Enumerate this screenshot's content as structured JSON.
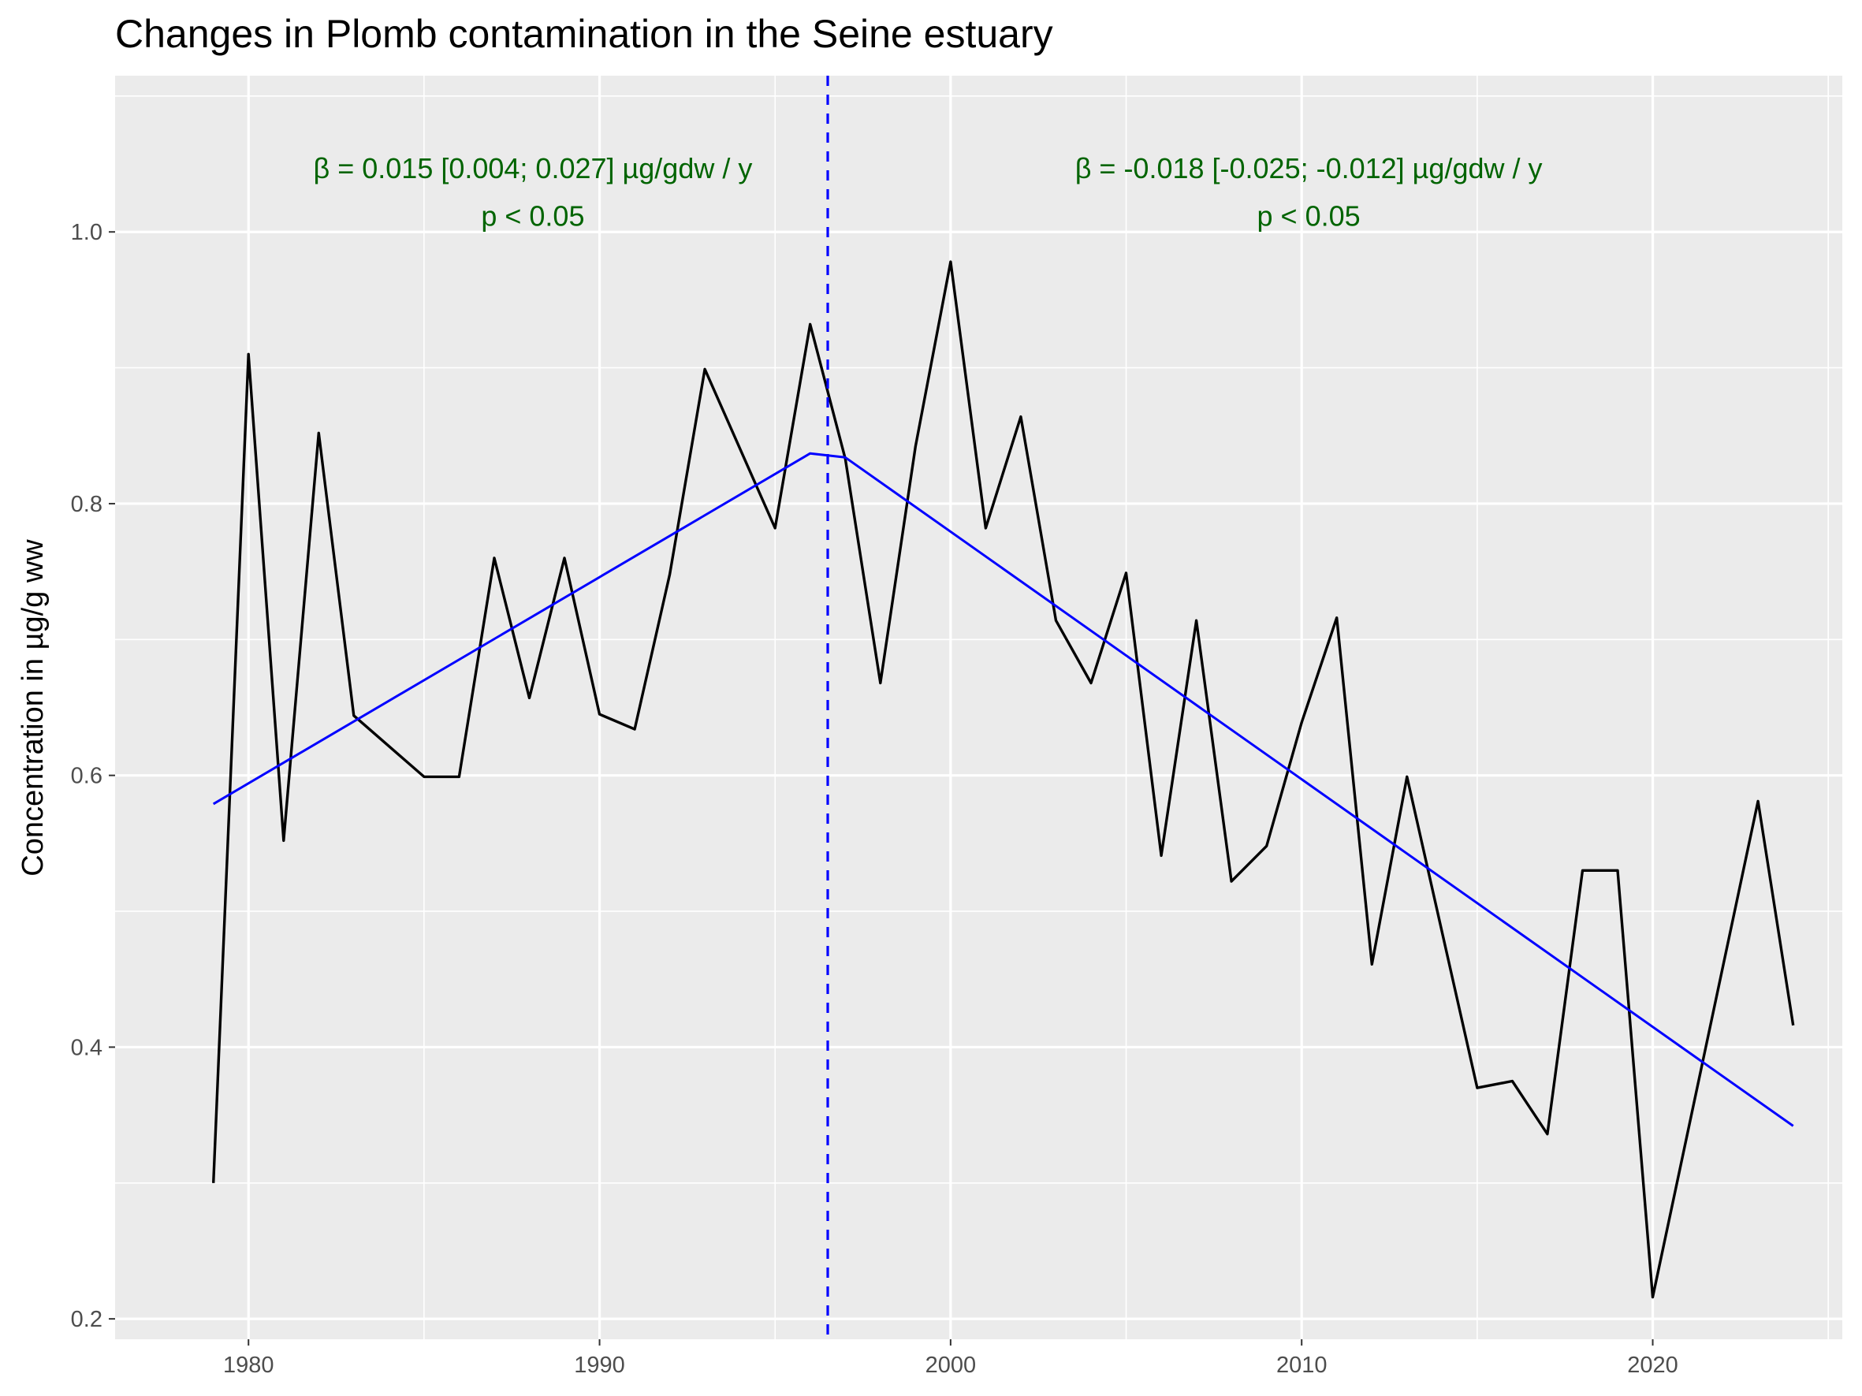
{
  "chart_data": {
    "type": "line",
    "title": "Changes in Plomb contamination in the Seine estuary",
    "xlabel": "",
    "ylabel": "Concentration in µg/g ww",
    "xlim": [
      1976.2,
      2025.4
    ],
    "ylim": [
      0.185,
      1.115
    ],
    "x_ticks": [
      1980,
      1990,
      2000,
      2010,
      2020
    ],
    "y_ticks": [
      0.2,
      0.4,
      0.6,
      0.8,
      1.0
    ],
    "x_tick_labels": [
      "1980",
      "1990",
      "2000",
      "2010",
      "2020"
    ],
    "y_tick_labels": [
      "0.2",
      "0.4",
      "0.6",
      "0.8",
      "1.0"
    ],
    "grid": true,
    "background": "#ebebeb",
    "series": [
      {
        "color": "#000000",
        "x": [
          1979,
          1980,
          1981,
          1982,
          1983,
          1985,
          1986,
          1987,
          1988,
          1989,
          1990,
          1991,
          1992,
          1993,
          1995,
          1996,
          1997,
          1998,
          1999,
          2000,
          2001,
          2002,
          2003,
          2004,
          2005,
          2006,
          2007,
          2008,
          2009,
          2010,
          2011,
          2012,
          2013,
          2015,
          2016,
          2017,
          2018,
          2019,
          2020,
          2023,
          2024
        ],
        "y": [
          0.3,
          0.91,
          0.552,
          0.852,
          0.644,
          0.599,
          0.599,
          0.76,
          0.657,
          0.76,
          0.645,
          0.634,
          0.748,
          0.899,
          0.782,
          0.932,
          0.833,
          0.668,
          0.842,
          0.978,
          0.782,
          0.864,
          0.714,
          0.668,
          0.749,
          0.541,
          0.714,
          0.522,
          0.548,
          0.639,
          0.716,
          0.461,
          0.599,
          0.37,
          0.375,
          0.336,
          0.53,
          0.53,
          0.216,
          0.581,
          0.416
        ]
      },
      {
        "color": "#0000ff",
        "x": [
          1979,
          1996,
          1997,
          2024
        ],
        "y": [
          0.579,
          0.837,
          0.834,
          0.342
        ]
      }
    ],
    "breakpoint": {
      "x": 1996.5,
      "color": "#0000ff",
      "style": "dashed"
    },
    "annotations": [
      {
        "line1": "β = 0.015 [0.004; 0.027] µg/gdw / y",
        "line2": "p < 0.05",
        "x": 1988.1,
        "y1": 1.047,
        "y2": 1.012
      },
      {
        "line1": "β = -0.018 [-0.025; -0.012] µg/gdw / y",
        "line2": "p < 0.05",
        "x": 2010.2,
        "y1": 1.047,
        "y2": 1.012
      }
    ]
  }
}
